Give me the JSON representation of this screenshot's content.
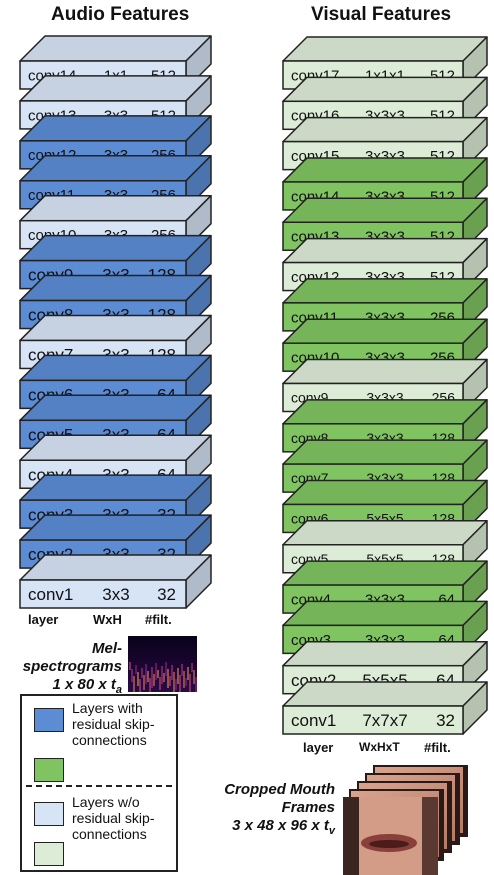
{
  "titles": {
    "audio": "Audio Features",
    "visual": "Visual Features"
  },
  "colors": {
    "residual_audio": "#5b8cd4",
    "plain_audio": "#d7e4f5",
    "residual_visual": "#80c462",
    "plain_visual": "#ddecd7",
    "edge": "#222222"
  },
  "audio_layers": [
    {
      "name": "conv14",
      "size": "1x1",
      "filters": "512",
      "residual": false
    },
    {
      "name": "conv13",
      "size": "3x3",
      "filters": "512",
      "residual": false
    },
    {
      "name": "conv12",
      "size": "3x3",
      "filters": "256",
      "residual": true
    },
    {
      "name": "conv11",
      "size": "3x3",
      "filters": "256",
      "residual": true
    },
    {
      "name": "conv10",
      "size": "3x3",
      "filters": "256",
      "residual": false
    },
    {
      "name": "conv9",
      "size": "3x3",
      "filters": "128",
      "residual": true
    },
    {
      "name": "conv8",
      "size": "3x3",
      "filters": "128",
      "residual": true
    },
    {
      "name": "conv7",
      "size": "3x3",
      "filters": "128",
      "residual": false
    },
    {
      "name": "conv6",
      "size": "3x3",
      "filters": "64",
      "residual": true
    },
    {
      "name": "conv5",
      "size": "3x3",
      "filters": "64",
      "residual": true
    },
    {
      "name": "conv4",
      "size": "3x3",
      "filters": "64",
      "residual": false
    },
    {
      "name": "conv3",
      "size": "3x3",
      "filters": "32",
      "residual": true
    },
    {
      "name": "conv2",
      "size": "3x3",
      "filters": "32",
      "residual": true
    },
    {
      "name": "conv1",
      "size": "3x3",
      "filters": "32",
      "residual": false
    }
  ],
  "visual_layers": [
    {
      "name": "conv17",
      "size": "1x1x1",
      "filters": "512",
      "residual": false
    },
    {
      "name": "conv16",
      "size": "3x3x3",
      "filters": "512",
      "residual": false
    },
    {
      "name": "conv15",
      "size": "3x3x3",
      "filters": "512",
      "residual": false
    },
    {
      "name": "conv14",
      "size": "3x3x3",
      "filters": "512",
      "residual": true
    },
    {
      "name": "conv13",
      "size": "3x3x3",
      "filters": "512",
      "residual": true
    },
    {
      "name": "conv12",
      "size": "3x3x3",
      "filters": "512",
      "residual": false
    },
    {
      "name": "conv11",
      "size": "3x3x3",
      "filters": "256",
      "residual": true
    },
    {
      "name": "conv10",
      "size": "3x3x3",
      "filters": "256",
      "residual": true
    },
    {
      "name": "conv9",
      "size": "3x3x3",
      "filters": "256",
      "residual": false
    },
    {
      "name": "conv8",
      "size": "3x3x3",
      "filters": "128",
      "residual": true
    },
    {
      "name": "conv7",
      "size": "3x3x3",
      "filters": "128",
      "residual": true
    },
    {
      "name": "conv6",
      "size": "5x5x5",
      "filters": "128",
      "residual": true
    },
    {
      "name": "conv5",
      "size": "5x5x5",
      "filters": "128",
      "residual": false
    },
    {
      "name": "conv4",
      "size": "3x3x3",
      "filters": "64",
      "residual": true
    },
    {
      "name": "conv3",
      "size": "3x3x3",
      "filters": "64",
      "residual": true
    },
    {
      "name": "conv2",
      "size": "5x5x5",
      "filters": "64",
      "residual": false
    },
    {
      "name": "conv1",
      "size": "7x7x7",
      "filters": "32",
      "residual": false
    }
  ],
  "audio_headers": {
    "layer": "layer",
    "size": "WxH",
    "filters": "#filt."
  },
  "visual_headers": {
    "layer": "layer",
    "size": "WxHxT",
    "filters": "#filt."
  },
  "audio_input": {
    "line1": "Mel-",
    "line2": "spectrograms",
    "line3": "1 x 80 x t",
    "sub": "a"
  },
  "visual_input": {
    "line1": "Cropped Mouth",
    "line2": "Frames",
    "line3": "3 x 48 x 96 x t",
    "sub": "v"
  },
  "legend": {
    "residual": "Layers with residual skip-connections",
    "plain": "Layers w/o residual skip-connections",
    "residual_lines": [
      "Layers with",
      "residual skip-",
      "connections"
    ],
    "plain_lines": [
      "Layers w/o",
      "residual skip-",
      "connections"
    ]
  }
}
